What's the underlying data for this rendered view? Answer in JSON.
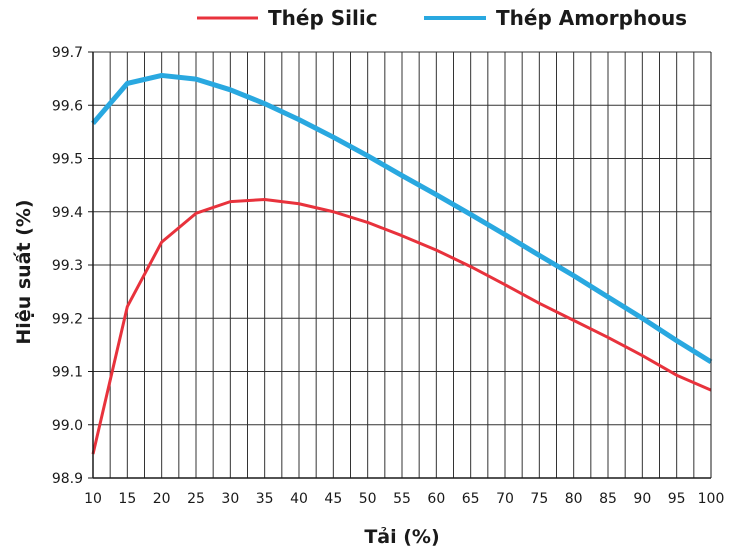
{
  "chart_data": {
    "type": "line",
    "title": "",
    "xlabel": "Tải (%)",
    "ylabel": "Hiệu suất (%)",
    "xlim": [
      10,
      100
    ],
    "ylim": [
      98.9,
      99.7
    ],
    "x_ticks": [
      "10",
      "15",
      "20",
      "25",
      "30",
      "35",
      "40",
      "45",
      "50",
      "55",
      "60",
      "65",
      "70",
      "75",
      "80",
      "85",
      "90",
      "95",
      "100"
    ],
    "y_ticks": [
      "98.9",
      "99.0",
      "99.1",
      "99.2",
      "99.3",
      "99.4",
      "99.5",
      "99.6",
      "99.7"
    ],
    "grid": true,
    "legend_position": "top",
    "x": [
      10,
      15,
      20,
      25,
      30,
      35,
      40,
      45,
      50,
      55,
      60,
      65,
      70,
      75,
      80,
      85,
      90,
      95,
      100
    ],
    "series": [
      {
        "name": "Thép Silic",
        "color": "#e8323c",
        "values": [
          98.945,
          99.222,
          99.343,
          99.397,
          99.419,
          99.423,
          99.415,
          99.4,
          99.38,
          99.355,
          99.328,
          99.297,
          99.263,
          99.228,
          99.196,
          99.164,
          99.13,
          99.093,
          99.065
        ]
      },
      {
        "name": "Thép Amorphous",
        "color": "#29a8e0",
        "values": [
          99.566,
          99.641,
          99.656,
          99.649,
          99.629,
          99.603,
          99.573,
          99.54,
          99.505,
          99.468,
          99.432,
          99.395,
          99.357,
          99.318,
          99.28,
          99.24,
          99.2,
          99.158,
          99.118
        ]
      }
    ]
  }
}
